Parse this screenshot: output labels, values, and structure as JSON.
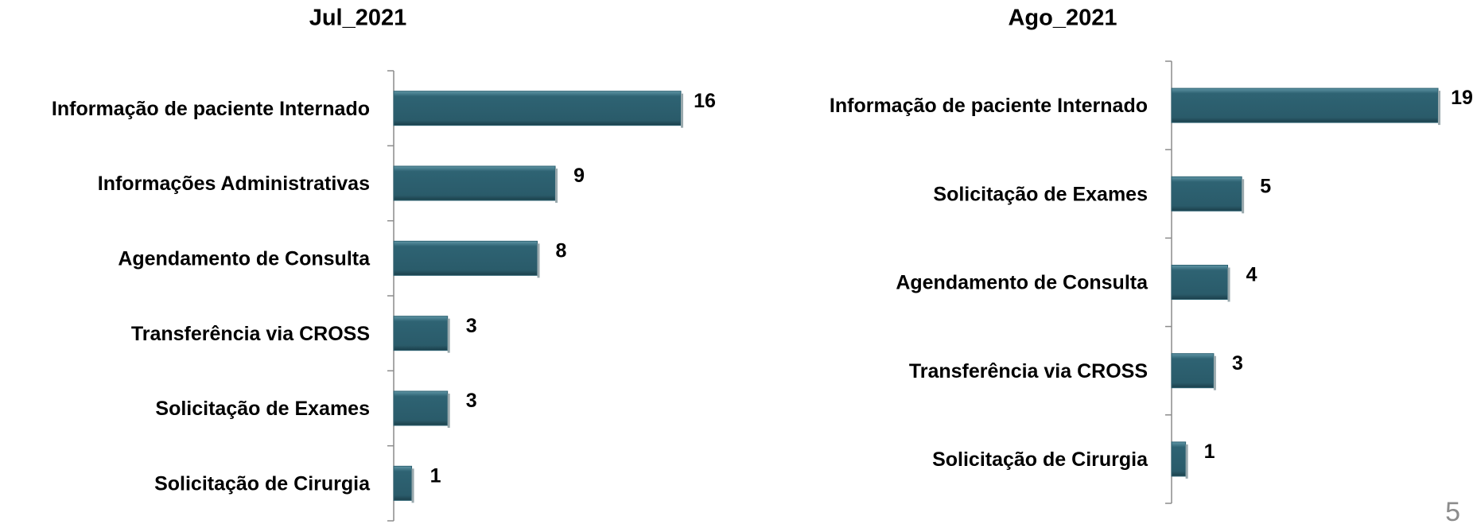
{
  "chart_data": [
    {
      "type": "barh",
      "title": "Jul_2021",
      "color": "#2e6373",
      "categories": [
        "Informação de paciente Internado",
        "Informações Administrativas",
        "Agendamento de Consulta",
        "Transferência via CROSS",
        "Solicitação de Exames",
        "Solicitação de Cirurgia"
      ],
      "values": [
        16,
        9,
        8,
        3,
        3,
        1
      ]
    },
    {
      "type": "barh",
      "title": "Ago_2021",
      "color": "#2e6373",
      "categories": [
        "Informação de paciente Internado",
        "Solicitação de Exames",
        "Agendamento de Consulta",
        "Transferência via CROSS",
        "Solicitação de Cirurgia"
      ],
      "values": [
        19,
        5,
        4,
        3,
        1
      ]
    }
  ],
  "page_number": "5"
}
